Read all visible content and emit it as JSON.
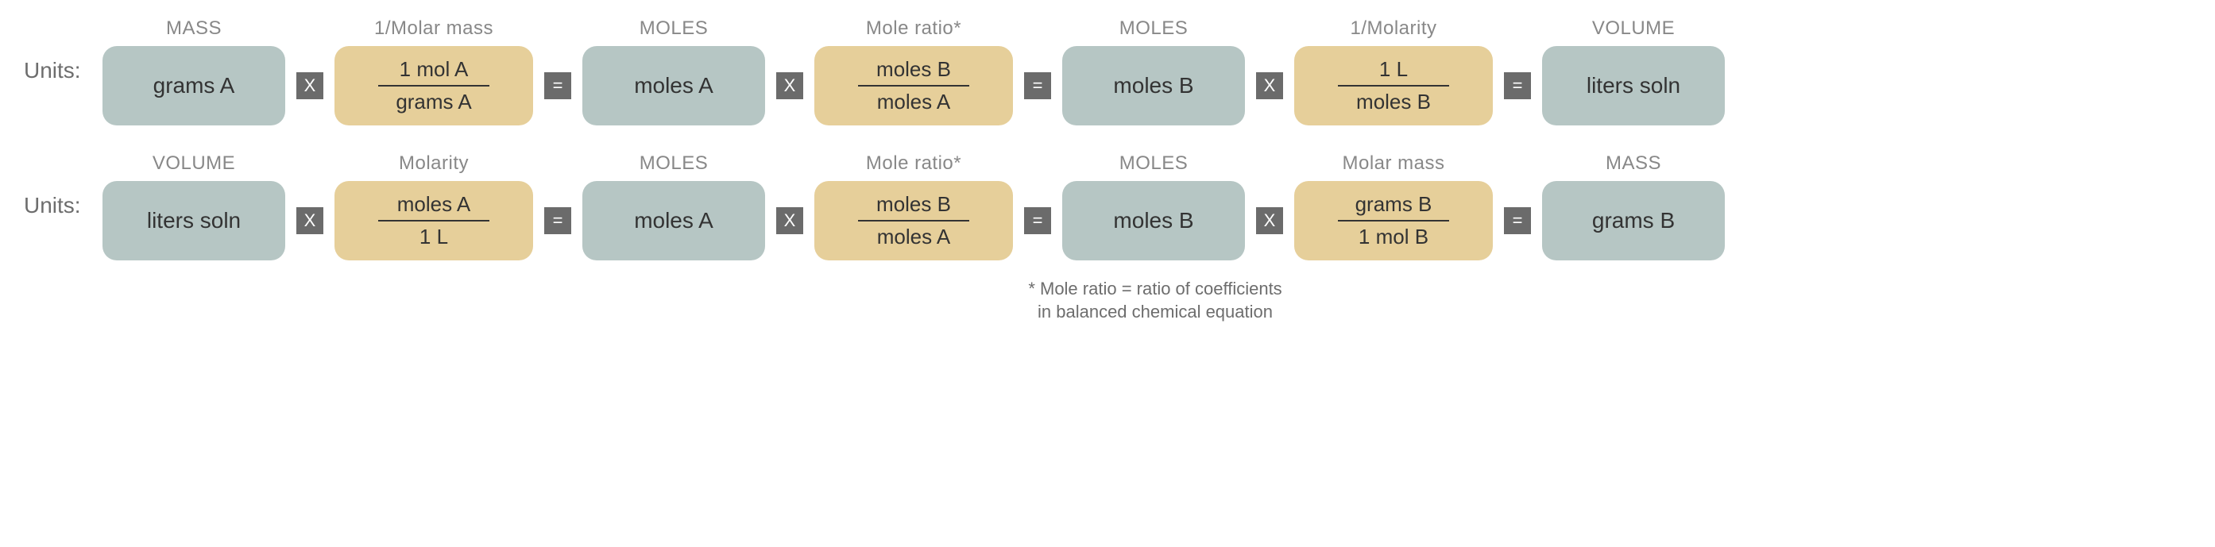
{
  "colors": {
    "blue_box": "#b6c6c4",
    "tan_box": "#e6cf9a",
    "op_bg": "#6b6b6b",
    "op_fg": "#ffffff",
    "header_text": "#888888",
    "body_text": "#333333",
    "label_text": "#6d6d6d",
    "background": "#ffffff"
  },
  "rows": [
    {
      "label": "Units:",
      "steps": [
        {
          "type": "blue",
          "header": "MASS",
          "text": "grams A"
        },
        {
          "type": "op",
          "symbol": "X"
        },
        {
          "type": "tan",
          "header": "1/Molar mass",
          "top": "1 mol A",
          "bot": "grams A"
        },
        {
          "type": "op",
          "symbol": "="
        },
        {
          "type": "blue",
          "header": "MOLES",
          "text": "moles A"
        },
        {
          "type": "op",
          "symbol": "X"
        },
        {
          "type": "tan",
          "header": "Mole ratio*",
          "top": "moles B",
          "bot": "moles A"
        },
        {
          "type": "op",
          "symbol": "="
        },
        {
          "type": "blue",
          "header": "MOLES",
          "text": "moles B"
        },
        {
          "type": "op",
          "symbol": "X"
        },
        {
          "type": "tan",
          "header": "1/Molarity",
          "top": "1 L",
          "bot": "moles B"
        },
        {
          "type": "op",
          "symbol": "="
        },
        {
          "type": "blue",
          "header": "VOLUME",
          "text": "liters soln"
        }
      ]
    },
    {
      "label": "Units:",
      "steps": [
        {
          "type": "blue",
          "header": "VOLUME",
          "text": "liters soln"
        },
        {
          "type": "op",
          "symbol": "X"
        },
        {
          "type": "tan",
          "header": "Molarity",
          "top": "moles A",
          "bot": "1 L"
        },
        {
          "type": "op",
          "symbol": "="
        },
        {
          "type": "blue",
          "header": "MOLES",
          "text": "moles A"
        },
        {
          "type": "op",
          "symbol": "X"
        },
        {
          "type": "tan",
          "header": "Mole ratio*",
          "top": "moles B",
          "bot": "moles A"
        },
        {
          "type": "op",
          "symbol": "="
        },
        {
          "type": "blue",
          "header": "MOLES",
          "text": "moles B"
        },
        {
          "type": "op",
          "symbol": "X"
        },
        {
          "type": "tan",
          "header": "Molar mass",
          "top": "grams B",
          "bot": "1 mol B"
        },
        {
          "type": "op",
          "symbol": "="
        },
        {
          "type": "blue",
          "header": "MASS",
          "text": "grams B"
        }
      ]
    }
  ],
  "footnote": {
    "line1": "* Mole ratio = ratio of coefficients",
    "line2": "in balanced chemical equation"
  }
}
